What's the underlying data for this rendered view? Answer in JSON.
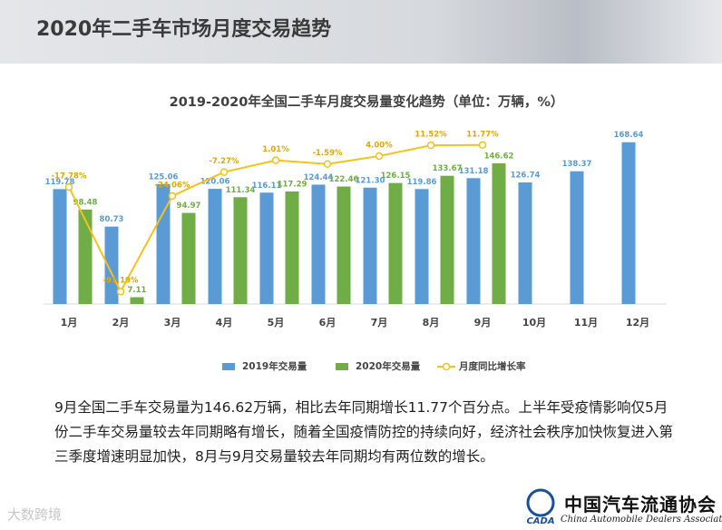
{
  "header": {
    "title": "2020年二手车市场月度交易趋势"
  },
  "chart_data": {
    "type": "bar-line",
    "title": "2019-2020年全国二手车月度交易量变化趋势（单位：万辆，%）",
    "categories": [
      "1月",
      "2月",
      "3月",
      "4月",
      "5月",
      "6月",
      "7月",
      "8月",
      "9月",
      "10月",
      "11月",
      "12月"
    ],
    "series": [
      {
        "name": "2019年交易量",
        "color": "#5b9bd5",
        "values": [
          119.78,
          80.73,
          125.06,
          120.06,
          116.11,
          124.44,
          121.3,
          119.86,
          131.18,
          126.74,
          138.37,
          168.64
        ],
        "value_labels": [
          "119.78",
          "80.73",
          "125.06",
          "120.06",
          "116.11",
          "124.44",
          "121.30",
          "119.86",
          "131.18",
          "126.74",
          "138.37",
          "168.64"
        ]
      },
      {
        "name": "2020年交易量",
        "color": "#70ad47",
        "values": [
          98.48,
          7.11,
          94.97,
          111.34,
          117.29,
          122.46,
          126.15,
          133.67,
          146.62,
          null,
          null,
          null
        ]
      },
      {
        "name": "月度同比增长率",
        "color": "#f5c21b",
        "axis": "y2",
        "values": [
          -17.78,
          -91.19,
          -24.06,
          -7.27,
          1.01,
          -1.59,
          4.0,
          11.52,
          11.77,
          null,
          null,
          null
        ],
        "value_labels": [
          "-17.78%",
          "-91.19%",
          "-24.06%",
          "-7.27%",
          "1.01%",
          "-1.59%",
          "4.00%",
          "11.52%",
          "11.77%",
          null,
          null,
          null
        ]
      }
    ],
    "ylim": [
      0,
      175
    ],
    "y2lim": [
      -100,
      18
    ],
    "legend": "bottom"
  },
  "paragraph": "9月全国二手车交易量为146.62万辆，相比去年同期增长11.77个百分点。上半年受疫情影响仅5月份二手车交易量较去年同期略有增长，随着全国疫情防控的持续向好，经济社会秩序加快恢复进入第三季度增速明显加快，8月与9月交易量较去年同期均有两位数的增长。",
  "footer": {
    "watermark": "大数跨境",
    "logo_cn": "中国汽车流通协会",
    "logo_en": "China Automobile Dealers Association",
    "logo_mark": "CADA"
  }
}
